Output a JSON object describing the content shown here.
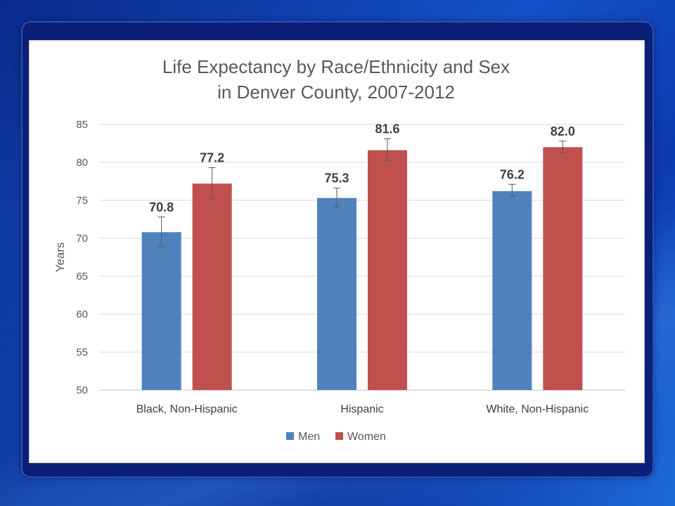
{
  "chart_data": {
    "type": "bar",
    "title_lines": [
      "Life Expectancy by Race/Ethnicity and Sex",
      "in Denver County, 2007-2012"
    ],
    "xlabel": "",
    "ylabel": "Years",
    "ylim": [
      50,
      85
    ],
    "yticks": [
      50,
      55,
      60,
      65,
      70,
      75,
      80,
      85
    ],
    "grid": true,
    "legend_position": "bottom",
    "categories": [
      "Black, Non-Hispanic",
      "Hispanic",
      "White, Non-Hispanic"
    ],
    "series": [
      {
        "name": "Men",
        "color": "#4f81bd",
        "values": [
          70.8,
          75.3,
          76.2
        ],
        "labels": [
          "70.8",
          "75.3",
          "76.2"
        ],
        "error_low": [
          68.9,
          74.1,
          75.5
        ],
        "error_high": [
          72.8,
          76.6,
          77.1
        ]
      },
      {
        "name": "Women",
        "color": "#c0504d",
        "values": [
          77.2,
          81.6,
          82.0
        ],
        "labels": [
          "77.2",
          "81.6",
          "82.0"
        ],
        "error_low": [
          75.2,
          80.2,
          81.3
        ],
        "error_high": [
          79.3,
          83.1,
          82.8
        ]
      }
    ]
  }
}
